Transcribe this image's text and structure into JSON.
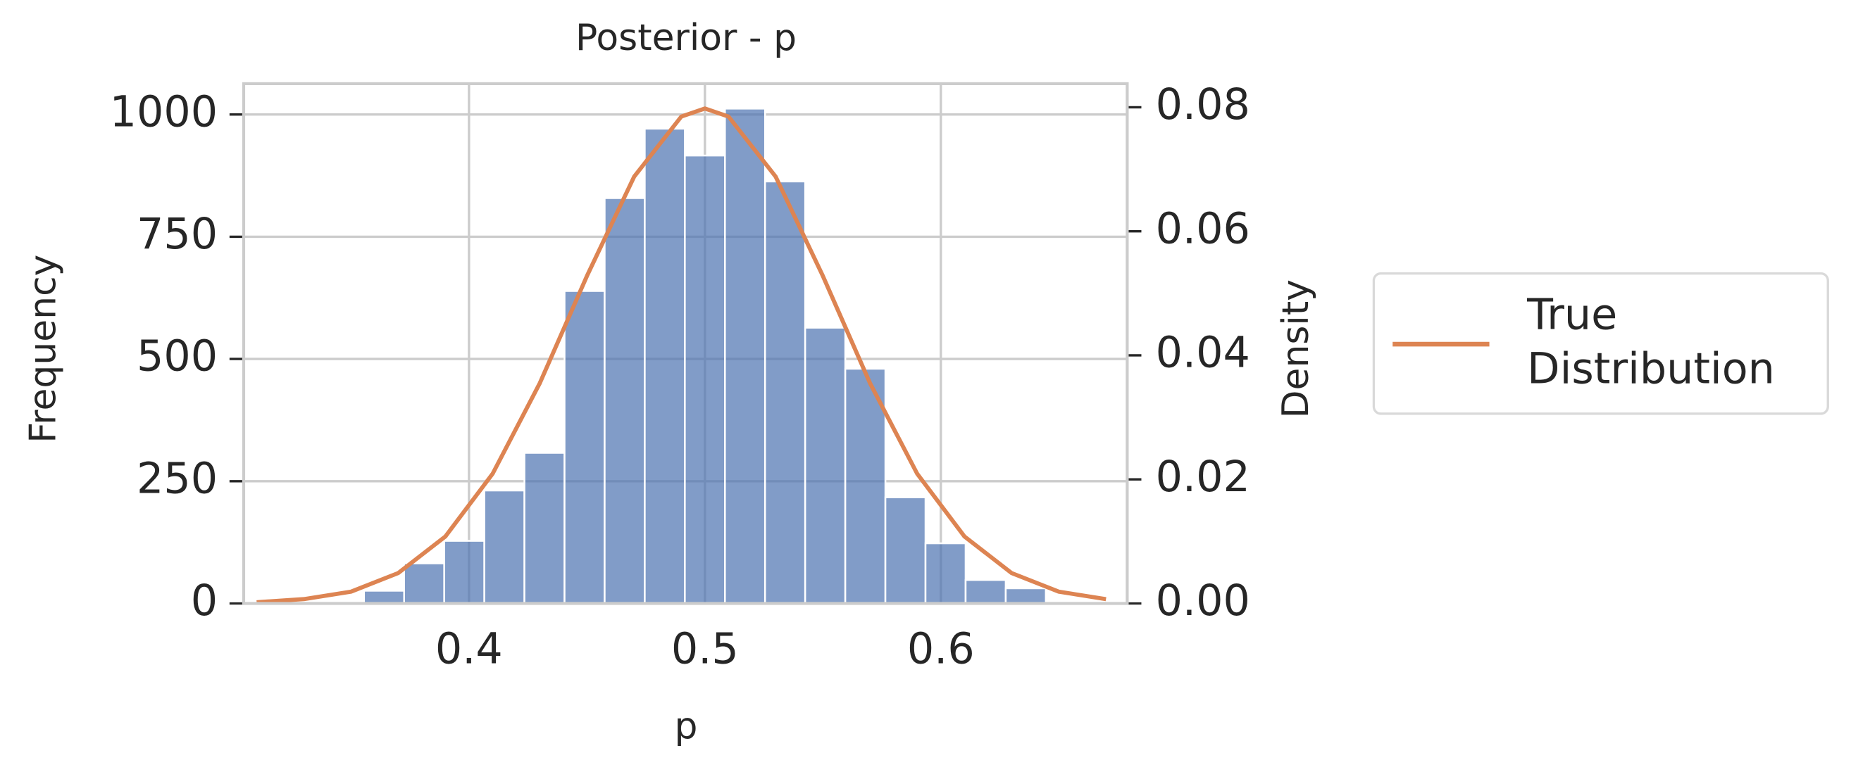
{
  "chart_data": {
    "type": "histogram",
    "title": "Posterior - p",
    "xlabel": "p",
    "ylabel": "Frequency",
    "y2label": "Density",
    "bins": [
      0.3555,
      0.3725,
      0.3895,
      0.4065,
      0.4235,
      0.4405,
      0.4575,
      0.4745,
      0.4915,
      0.5085,
      0.5255,
      0.5425,
      0.5595,
      0.5765,
      0.5935,
      0.6105,
      0.6275,
      0.6445
    ],
    "counts": [
      26,
      82,
      128,
      231,
      308,
      639,
      829,
      971,
      916,
      1012,
      863,
      564,
      480,
      217,
      123,
      48,
      31
    ],
    "color": "#4c72b0",
    "series": [
      {
        "name": "True Distribution",
        "color": "#dd8452",
        "axis": "y2",
        "x": [
          0.31,
          0.33,
          0.35,
          0.37,
          0.39,
          0.41,
          0.43,
          0.45,
          0.47,
          0.49,
          0.5,
          0.51,
          0.53,
          0.55,
          0.57,
          0.59,
          0.61,
          0.63,
          0.65,
          0.67
        ],
        "values": [
          0.0002,
          0.0007,
          0.0019,
          0.0049,
          0.0108,
          0.0209,
          0.0355,
          0.0528,
          0.0688,
          0.0785,
          0.0798,
          0.0785,
          0.0688,
          0.0528,
          0.0355,
          0.0209,
          0.0108,
          0.0049,
          0.0019,
          0.0007
        ]
      }
    ],
    "xlim": [
      0.3045,
      0.679
    ],
    "xticks": [
      0.4,
      0.5,
      0.6
    ],
    "ylim": [
      0,
      1063
    ],
    "yticks": [
      0,
      250,
      500,
      750,
      1000
    ],
    "y2lim": [
      0,
      0.0838
    ],
    "y2ticks": [
      {
        "value": 0,
        "label": "0.00"
      },
      {
        "value": 0.02,
        "label": "0.02"
      },
      {
        "value": 0.04,
        "label": "0.04"
      },
      {
        "value": 0.06,
        "label": "0.06"
      },
      {
        "value": 0.08,
        "label": "0.08"
      }
    ],
    "grid": true,
    "legend": "outside right"
  }
}
